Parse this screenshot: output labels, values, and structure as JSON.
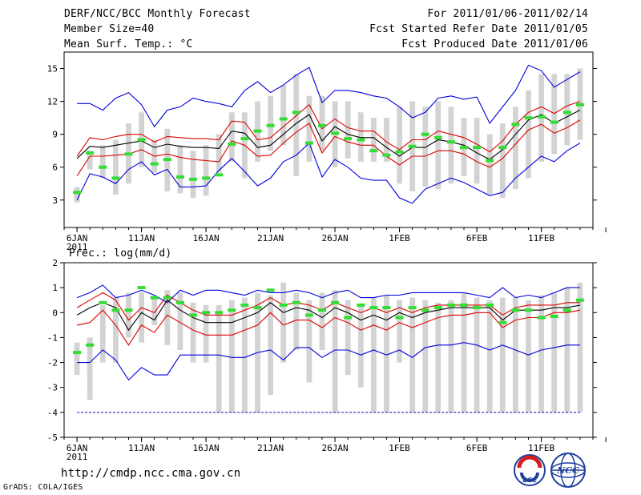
{
  "header": {
    "title": "DERF/NCC/BCC Monthly Forecast",
    "member_size": "Member Size=40",
    "variable": "Mean Surf. Temp.: °C",
    "period": "For 2011/01/06-2011/02/14",
    "start_date": "Fcst Started Refer Date 2011/01/05",
    "produced_date": "Fcst Produced Date 2011/01/06"
  },
  "footer": {
    "url": "http://cmdp.ncc.cma.gov.cn",
    "credit": "GrADS: COLA/IGES",
    "logo_bcc": "BCC",
    "logo_ncc": "NCC"
  },
  "colors": {
    "box": "#d3d3d3",
    "median": "#33dd33",
    "mean": "#000000",
    "std": "#dd0000",
    "extreme": "#0000dd",
    "axis": "#000000"
  },
  "chart_data": [
    {
      "id": "temperature",
      "type": "box-plot-with-lines",
      "ylabel": "Mean Surf. Temp.: °C",
      "ylim": [
        0.5,
        16.5
      ],
      "yticks": [
        3,
        6,
        9,
        12,
        15
      ],
      "ytick_labels": [
        "3",
        "6",
        "9",
        "12",
        "15"
      ],
      "x": [
        0,
        1,
        2,
        3,
        4,
        5,
        6,
        7,
        8,
        9,
        10,
        11,
        12,
        13,
        14,
        15,
        16,
        17,
        18,
        19,
        20,
        21,
        22,
        23,
        24,
        25,
        26,
        27,
        28,
        29,
        30,
        31,
        32,
        33,
        34,
        35,
        36,
        37,
        38,
        39
      ],
      "xlim": [
        -1,
        40
      ],
      "xticks": [
        0,
        5,
        10,
        15,
        20,
        25,
        31,
        36,
        41
      ],
      "xtick_labels": [
        "6JAN",
        "11JAN",
        "16JAN",
        "21JAN",
        "26JAN",
        "1FEB",
        "6FEB",
        "11FEB",
        ""
      ],
      "year_label": "2011",
      "box_low": [
        2.8,
        5.8,
        5.0,
        3.5,
        4.5,
        6.0,
        5.5,
        3.8,
        3.6,
        3.2,
        3.4,
        5.5,
        6.5,
        5.0,
        6.5,
        7.5,
        8.0,
        5.2,
        6.5,
        7.5,
        6.0,
        6.8,
        6.5,
        6.5,
        6.5,
        4.5,
        3.8,
        4.2,
        4.0,
        4.5,
        5.2,
        4.5,
        3.5,
        3.2,
        4.0,
        5.0,
        6.5,
        7.2,
        8.0,
        8.5
      ],
      "box_high": [
        4.2,
        7.5,
        8.0,
        8.5,
        10.0,
        11.0,
        8.5,
        9.5,
        8.0,
        7.5,
        8.0,
        9.0,
        11.0,
        11.0,
        12.0,
        12.5,
        13.5,
        14.5,
        12.5,
        12.5,
        12.0,
        12.0,
        11.0,
        10.5,
        10.5,
        11.5,
        12.0,
        11.5,
        12.0,
        11.5,
        10.5,
        10.5,
        9.0,
        10.0,
        11.5,
        13.0,
        14.5,
        14.5,
        14.5,
        15.0
      ],
      "median": [
        3.7,
        7.3,
        6.0,
        5.0,
        7.2,
        8.5,
        6.3,
        6.7,
        5.1,
        4.9,
        5.0,
        5.3,
        8.1,
        8.6,
        9.3,
        9.8,
        10.4,
        11.0,
        8.2,
        9.8,
        9.1,
        8.6,
        8.5,
        7.5,
        7.1,
        7.4,
        7.9,
        9.0,
        8.7,
        8.3,
        7.8,
        7.8,
        6.6,
        7.8,
        9.9,
        10.5,
        10.6,
        10.1,
        11.0,
        11.7
      ],
      "mean": [
        6.8,
        7.9,
        7.8,
        8.0,
        8.2,
        8.4,
        7.8,
        8.1,
        7.9,
        7.8,
        7.8,
        7.7,
        9.3,
        9.1,
        7.8,
        8.0,
        9.0,
        10.0,
        10.8,
        8.4,
        9.7,
        9.0,
        8.7,
        8.7,
        7.8,
        7.0,
        7.8,
        7.8,
        8.5,
        8.3,
        8.0,
        7.3,
        6.7,
        7.6,
        9.0,
        10.3,
        10.8,
        10.0,
        10.6,
        11.2
      ],
      "std_high": [
        7.0,
        8.7,
        8.5,
        8.8,
        9.0,
        9.0,
        8.3,
        8.8,
        8.7,
        8.6,
        8.6,
        8.5,
        10.2,
        10.1,
        8.5,
        8.7,
        9.7,
        10.7,
        11.7,
        9.5,
        10.4,
        9.6,
        9.3,
        9.3,
        8.3,
        7.6,
        8.5,
        8.5,
        9.3,
        9.0,
        8.7,
        8.1,
        7.4,
        8.4,
        9.9,
        11.0,
        11.5,
        10.9,
        11.6,
        12.0
      ],
      "std_low": [
        5.2,
        7.0,
        7.0,
        7.1,
        7.2,
        7.6,
        7.0,
        7.2,
        6.9,
        6.7,
        6.6,
        6.5,
        8.4,
        8.0,
        7.0,
        7.1,
        8.2,
        9.2,
        10.0,
        7.3,
        8.8,
        8.3,
        8.0,
        8.0,
        7.0,
        6.2,
        7.0,
        7.0,
        7.5,
        7.5,
        7.2,
        6.5,
        6.0,
        6.8,
        8.1,
        9.4,
        9.9,
        9.1,
        9.6,
        10.3
      ],
      "max": [
        11.8,
        11.8,
        11.2,
        12.3,
        12.8,
        11.7,
        9.7,
        11.2,
        11.5,
        12.3,
        12.0,
        11.8,
        11.5,
        13.0,
        13.8,
        12.8,
        13.5,
        14.4,
        15.1,
        11.9,
        13.0,
        13.0,
        12.8,
        12.5,
        12.3,
        11.5,
        10.5,
        11.0,
        12.3,
        12.5,
        12.2,
        12.4,
        10.0,
        11.5,
        13.0,
        15.3,
        14.8,
        13.3,
        14.0,
        14.7
      ],
      "min": [
        3.0,
        5.4,
        5.1,
        4.5,
        5.8,
        6.5,
        5.3,
        5.8,
        4.2,
        4.2,
        4.3,
        5.7,
        6.8,
        5.6,
        4.3,
        5.0,
        6.5,
        7.1,
        8.2,
        5.1,
        6.7,
        6.0,
        5.0,
        4.8,
        4.8,
        3.2,
        2.7,
        4.0,
        4.5,
        5.0,
        4.6,
        4.0,
        3.4,
        3.7,
        5.0,
        6.0,
        7.0,
        6.5,
        7.5,
        8.2
      ]
    },
    {
      "id": "precipitation",
      "type": "box-plot-with-lines",
      "ylabel": "Prec.: log(mm/d)",
      "ylim": [
        -5,
        2
      ],
      "yticks": [
        -5,
        -4,
        -3,
        -2,
        -1,
        0,
        1,
        2
      ],
      "ytick_labels": [
        "-5",
        "-4",
        "-3",
        "-2",
        "-1",
        "0",
        "1",
        "2"
      ],
      "x": [
        0,
        1,
        2,
        3,
        4,
        5,
        6,
        7,
        8,
        9,
        10,
        11,
        12,
        13,
        14,
        15,
        16,
        17,
        18,
        19,
        20,
        21,
        22,
        23,
        24,
        25,
        26,
        27,
        28,
        29,
        30,
        31,
        32,
        33,
        34,
        35,
        36,
        37,
        38,
        39
      ],
      "xlim": [
        -1,
        40
      ],
      "xticks": [
        0,
        5,
        10,
        15,
        20,
        25,
        31,
        36,
        41
      ],
      "xtick_labels": [
        "6JAN",
        "11JAN",
        "16JAN",
        "21JAN",
        "26JAN",
        "1FEB",
        "6FEB",
        "11FEB",
        ""
      ],
      "year_label": "2011",
      "box_low": [
        -2.5,
        -3.5,
        -2.0,
        -2.0,
        -1.0,
        -1.2,
        -0.5,
        -1.3,
        -1.5,
        -2.0,
        -2.0,
        -4.0,
        -4.0,
        -4.0,
        -4.0,
        -3.3,
        -2.0,
        -1.5,
        -2.8,
        -1.5,
        -4.0,
        -2.5,
        -3.0,
        -4.0,
        -4.0,
        -2.0,
        -4.0,
        -4.0,
        -4.0,
        -4.0,
        -4.0,
        -4.0,
        -4.0,
        -4.0,
        -4.0,
        -4.0,
        -4.0,
        -4.0,
        -4.0,
        -4.0
      ],
      "box_high": [
        -1.2,
        -1.0,
        0.3,
        0.6,
        0.8,
        0.8,
        0.6,
        0.9,
        0.8,
        0.4,
        0.3,
        0.3,
        0.5,
        0.6,
        0.8,
        0.7,
        1.2,
        0.8,
        0.5,
        0.8,
        0.9,
        0.5,
        0.3,
        0.6,
        0.7,
        0.5,
        0.6,
        0.5,
        0.4,
        0.5,
        0.8,
        0.6,
        0.5,
        0.6,
        0.6,
        0.5,
        0.7,
        0.8,
        1.0,
        1.2
      ],
      "median": [
        -1.6,
        -1.3,
        0.4,
        0.1,
        0.1,
        1.0,
        0.6,
        0.6,
        0.4,
        -0.1,
        0.0,
        0.0,
        0.1,
        0.3,
        0.2,
        0.9,
        0.3,
        0.4,
        -0.1,
        0.1,
        0.4,
        -0.2,
        0.3,
        0.2,
        0.2,
        -0.2,
        0.2,
        0.1,
        0.2,
        0.3,
        0.3,
        0.2,
        0.3,
        -0.4,
        0.1,
        0.1,
        -0.2,
        -0.15,
        0.1,
        0.5
      ],
      "mean": [
        -0.1,
        0.2,
        0.4,
        0.2,
        -0.7,
        0.0,
        -0.3,
        0.5,
        0.1,
        -0.2,
        -0.4,
        -0.4,
        -0.4,
        -0.2,
        0.0,
        0.4,
        0.0,
        0.2,
        0.1,
        -0.2,
        0.2,
        0.0,
        -0.3,
        -0.1,
        -0.3,
        0.0,
        -0.2,
        0.0,
        0.1,
        0.2,
        0.2,
        0.2,
        0.2,
        -0.3,
        0.1,
        0.1,
        0.1,
        0.2,
        0.2,
        0.3
      ],
      "std_high": [
        0.2,
        0.5,
        0.8,
        0.5,
        -0.3,
        0.2,
        0.0,
        0.7,
        0.4,
        0.1,
        -0.1,
        -0.1,
        -0.1,
        0.1,
        0.3,
        0.6,
        0.3,
        0.4,
        0.3,
        0.1,
        0.4,
        0.2,
        0.0,
        0.2,
        0.0,
        0.2,
        0.0,
        0.2,
        0.3,
        0.3,
        0.3,
        0.3,
        0.3,
        -0.1,
        0.2,
        0.3,
        0.3,
        0.3,
        0.4,
        0.4
      ],
      "std_low": [
        -0.5,
        -0.4,
        0.1,
        -0.5,
        -1.3,
        -0.5,
        -0.8,
        -0.1,
        -0.4,
        -0.7,
        -0.9,
        -0.9,
        -0.9,
        -0.7,
        -0.5,
        0.0,
        -0.5,
        -0.3,
        -0.3,
        -0.6,
        -0.2,
        -0.4,
        -0.7,
        -0.5,
        -0.7,
        -0.4,
        -0.6,
        -0.4,
        -0.2,
        -0.1,
        -0.1,
        0.0,
        0.0,
        -0.6,
        -0.3,
        -0.2,
        -0.2,
        0.0,
        0.0,
        0.1
      ],
      "max": [
        0.6,
        0.8,
        1.1,
        0.6,
        0.7,
        0.9,
        0.7,
        0.4,
        0.9,
        0.7,
        0.9,
        0.9,
        0.8,
        0.7,
        0.9,
        0.8,
        0.8,
        0.9,
        0.8,
        0.6,
        0.8,
        0.9,
        0.6,
        0.6,
        0.7,
        0.7,
        0.8,
        0.8,
        0.8,
        0.8,
        0.8,
        0.7,
        0.6,
        1.0,
        0.6,
        0.7,
        0.6,
        0.8,
        1.0,
        1.0
      ],
      "min": [
        -2.0,
        -2.0,
        -1.5,
        -1.9,
        -2.7,
        -2.2,
        -2.5,
        -2.5,
        -1.7,
        -1.7,
        -1.7,
        -1.7,
        -1.8,
        -1.8,
        -1.6,
        -1.5,
        -1.9,
        -1.4,
        -1.4,
        -1.8,
        -1.5,
        -1.5,
        -1.7,
        -1.5,
        -1.7,
        -1.5,
        -1.8,
        -1.4,
        -1.3,
        -1.3,
        -1.2,
        -1.3,
        -1.5,
        -1.3,
        -1.5,
        -1.7,
        -1.5,
        -1.4,
        -1.3,
        -1.3
      ],
      "floor_line": -4.0
    }
  ]
}
